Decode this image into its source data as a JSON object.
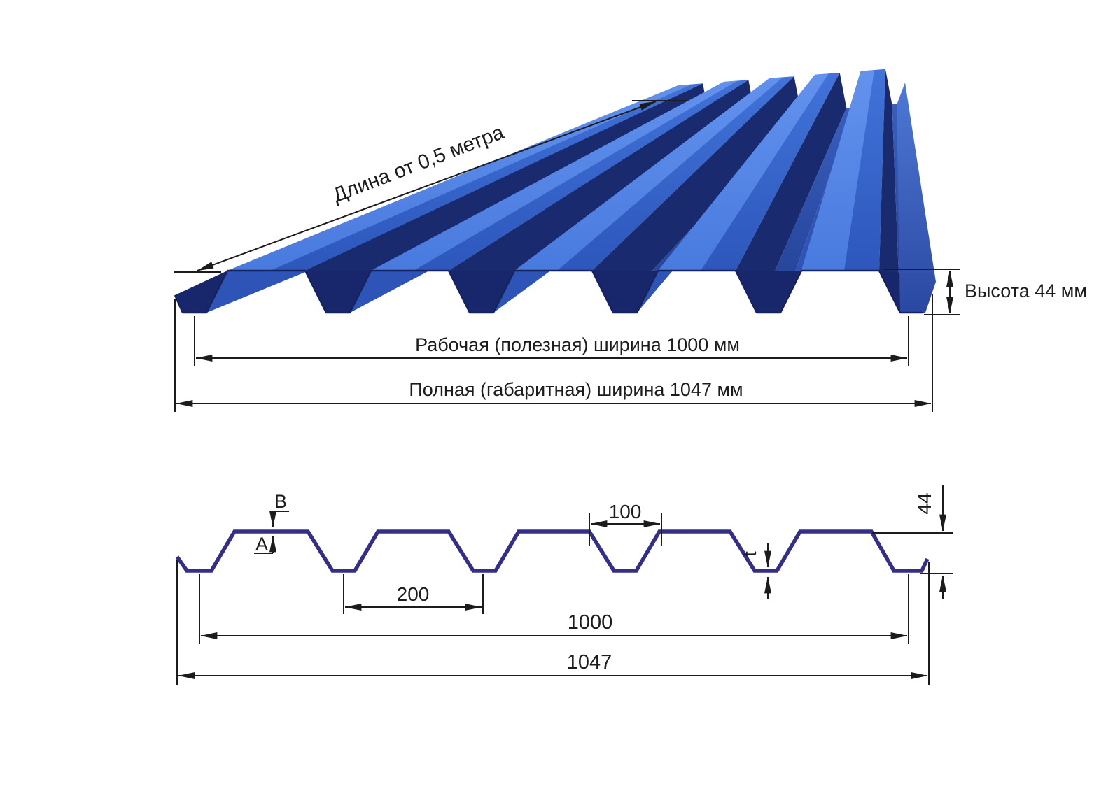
{
  "top_view": {
    "length_label": "Длина от 0,5 метра",
    "height_label": "Высота 44 мм",
    "working_width_label": "Рабочая (полезная) ширина 1000 мм",
    "overall_width_label": "Полная (габаритная) ширина 1047 мм"
  },
  "cross_section": {
    "label_b": "B",
    "label_a": "A",
    "crest_top_width": "100",
    "pitch": "200",
    "height": "44",
    "thickness_label": "t",
    "working_width": "1000",
    "overall_width": "1047"
  },
  "colors": {
    "sheet_crest_light": "#6493ee",
    "sheet_crest": "#4274da",
    "sheet_crest_deep": "#2850b4",
    "sheet_rising": "#2d54b6",
    "sheet_falling": "#1a2a6e",
    "sheet_valley_light": "#3c64c6",
    "sheet_valley_deep": "#223f92",
    "sheet_cut": "#18276b",
    "sheet_right_face_light": "#4f7cda",
    "sheet_right_face_deep": "#2a47a0",
    "profile_line": "#332e87",
    "dimension_ink": "#1c1c1c"
  }
}
